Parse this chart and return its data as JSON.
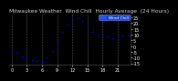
{
  "title": "Milwaukee Weather  Wind Chill  Hourly Average  (24 Hours)",
  "x_hours": [
    0,
    1,
    2,
    3,
    4,
    5,
    6,
    7,
    8,
    9,
    10,
    11,
    12,
    13,
    14,
    15,
    16,
    17,
    18,
    19,
    20,
    21,
    22,
    23
  ],
  "y_values": [
    -4,
    -6,
    -9,
    -10,
    -12,
    -13,
    -14,
    -10,
    -4,
    4,
    12,
    19,
    23,
    24,
    22,
    18,
    12,
    10,
    9,
    8,
    7,
    8,
    9,
    10
  ],
  "line_color": "#0000cc",
  "bg_color": "#000000",
  "plot_bg": "#000000",
  "grid_color": "#555555",
  "ylim": [
    -16,
    28
  ],
  "yticks": [
    5,
    10,
    15,
    20,
    25
  ],
  "yticks_neg": [
    -15,
    -10,
    -5,
    0
  ],
  "xtick_step": 3,
  "xtick_labels": [
    "0",
    "",
    "",
    "3",
    "",
    "",
    "6",
    "",
    "",
    "9",
    "",
    "",
    "12",
    "",
    "",
    "15",
    "",
    "",
    "18",
    "",
    "",
    "21",
    "",
    "",
    ""
  ],
  "legend_label": "Wind Chill",
  "legend_color": "#2255ff",
  "title_fontsize": 4.2,
  "tick_fontsize": 3.5,
  "marker_size": 1.2,
  "title_color": "#cccccc"
}
